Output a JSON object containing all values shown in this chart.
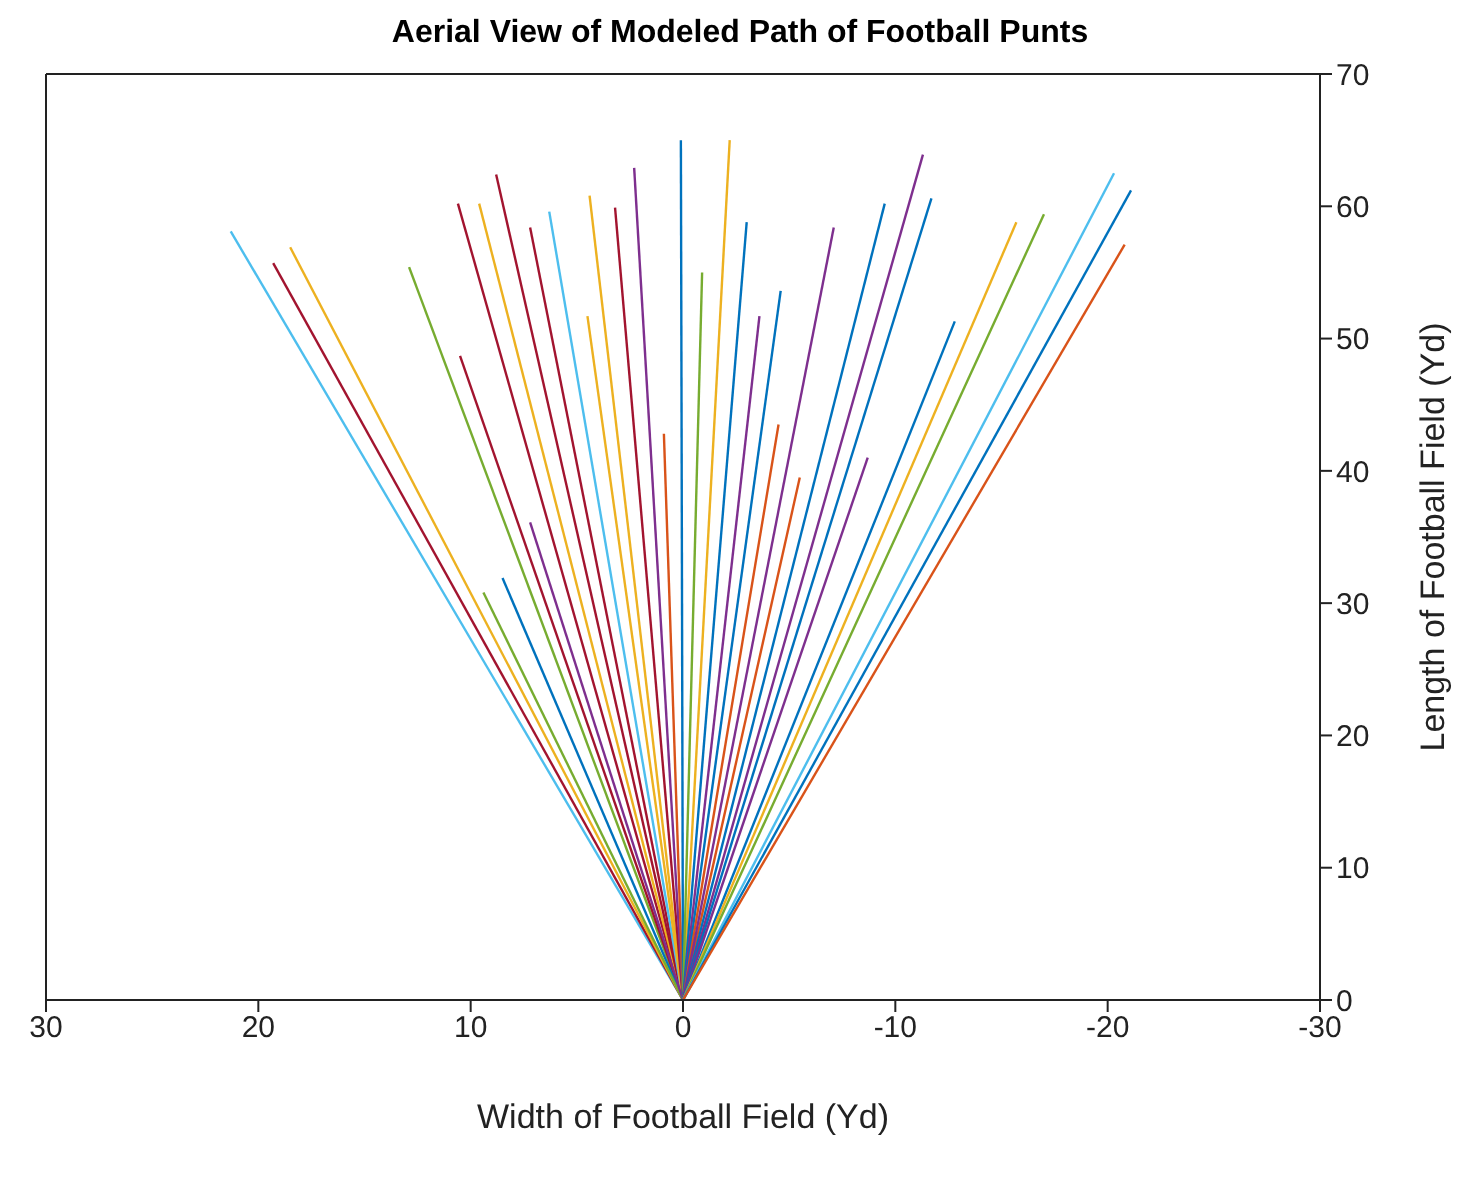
{
  "chart_data": {
    "type": "line",
    "title": "Aerial View of Modeled Path of Football Punts",
    "xlabel": "Width of Football Field (Yd)",
    "ylabel": "Length of Football Field (Yd)",
    "xlim": [
      30,
      -30
    ],
    "xticks": [
      30,
      20,
      10,
      0,
      -10,
      -20,
      -30
    ],
    "ylim": [
      0,
      70
    ],
    "yticks": [
      0,
      10,
      20,
      30,
      40,
      50,
      60,
      70
    ],
    "series": [
      {
        "color": "#4dbeee",
        "x": [
          0,
          21.3
        ],
        "values": [
          0,
          58.1
        ]
      },
      {
        "color": "#a2142f",
        "x": [
          0,
          19.3
        ],
        "values": [
          0,
          55.7
        ]
      },
      {
        "color": "#edb120",
        "x": [
          0,
          18.5
        ],
        "values": [
          0,
          56.9
        ]
      },
      {
        "color": "#77ac30",
        "x": [
          0,
          12.9
        ],
        "values": [
          0,
          55.4
        ]
      },
      {
        "color": "#a2142f",
        "x": [
          0,
          10.5
        ],
        "values": [
          0,
          48.7
        ]
      },
      {
        "color": "#a2142f",
        "x": [
          0,
          10.6
        ],
        "values": [
          0,
          60.2
        ]
      },
      {
        "color": "#edb120",
        "x": [
          0,
          9.6
        ],
        "values": [
          0,
          60.2
        ]
      },
      {
        "color": "#a2142f",
        "x": [
          0,
          8.8
        ],
        "values": [
          0,
          62.4
        ]
      },
      {
        "color": "#a2142f",
        "x": [
          0,
          7.2
        ],
        "values": [
          0,
          58.4
        ]
      },
      {
        "color": "#4dbeee",
        "x": [
          0,
          6.3
        ],
        "values": [
          0,
          59.6
        ]
      },
      {
        "color": "#edb120",
        "x": [
          0,
          4.4
        ],
        "values": [
          0,
          60.8
        ]
      },
      {
        "color": "#edb120",
        "x": [
          0,
          4.5
        ],
        "values": [
          0,
          51.7
        ]
      },
      {
        "color": "#a2142f",
        "x": [
          0,
          3.2
        ],
        "values": [
          0,
          59.9
        ]
      },
      {
        "color": "#7e2f8e",
        "x": [
          0,
          2.3
        ],
        "values": [
          0,
          62.9
        ]
      },
      {
        "color": "#d95319",
        "x": [
          0,
          0.9
        ],
        "values": [
          0,
          42.8
        ]
      },
      {
        "color": "#0072bd",
        "x": [
          0,
          8.5
        ],
        "values": [
          0,
          31.9
        ]
      },
      {
        "color": "#77ac30",
        "x": [
          0,
          9.4
        ],
        "values": [
          0,
          30.8
        ]
      },
      {
        "color": "#7e2f8e",
        "x": [
          0,
          7.2
        ],
        "values": [
          0,
          36.1
        ]
      },
      {
        "color": "#0072bd",
        "x": [
          0,
          0.1
        ],
        "values": [
          0,
          65
        ]
      },
      {
        "color": "#edb120",
        "x": [
          0,
          -2.2
        ],
        "values": [
          0,
          65
        ]
      },
      {
        "color": "#77ac30",
        "x": [
          0,
          -0.9
        ],
        "values": [
          0,
          55
        ]
      },
      {
        "color": "#0072bd",
        "x": [
          0,
          -3.0
        ],
        "values": [
          0,
          58.8
        ]
      },
      {
        "color": "#7e2f8e",
        "x": [
          0,
          -3.6
        ],
        "values": [
          0,
          51.7
        ]
      },
      {
        "color": "#0072bd",
        "x": [
          0,
          -4.6
        ],
        "values": [
          0,
          53.6
        ]
      },
      {
        "color": "#d95319",
        "x": [
          0,
          -4.5
        ],
        "values": [
          0,
          43.5
        ]
      },
      {
        "color": "#d95319",
        "x": [
          0,
          -5.5
        ],
        "values": [
          0,
          39.5
        ]
      },
      {
        "color": "#7e2f8e",
        "x": [
          0,
          -7.1
        ],
        "values": [
          0,
          58.4
        ]
      },
      {
        "color": "#0072bd",
        "x": [
          0,
          -9.5
        ],
        "values": [
          0,
          60.2
        ]
      },
      {
        "color": "#7e2f8e",
        "x": [
          0,
          -11.3
        ],
        "values": [
          0,
          63.9
        ]
      },
      {
        "color": "#0072bd",
        "x": [
          0,
          -11.7
        ],
        "values": [
          0,
          60.6
        ]
      },
      {
        "color": "#7e2f8e",
        "x": [
          0,
          -8.7
        ],
        "values": [
          0,
          41
        ]
      },
      {
        "color": "#0072bd",
        "x": [
          0,
          -12.8
        ],
        "values": [
          0,
          51.3
        ]
      },
      {
        "color": "#edb120",
        "x": [
          0,
          -15.7
        ],
        "values": [
          0,
          58.8
        ]
      },
      {
        "color": "#77ac30",
        "x": [
          0,
          -17.0
        ],
        "values": [
          0,
          59.4
        ]
      },
      {
        "color": "#4dbeee",
        "x": [
          0,
          -20.3
        ],
        "values": [
          0,
          62.5
        ]
      },
      {
        "color": "#0072bd",
        "x": [
          0,
          -21.1
        ],
        "values": [
          0,
          61.2
        ]
      },
      {
        "color": "#d95319",
        "x": [
          0,
          -20.8
        ],
        "values": [
          0,
          57.1
        ]
      }
    ]
  }
}
